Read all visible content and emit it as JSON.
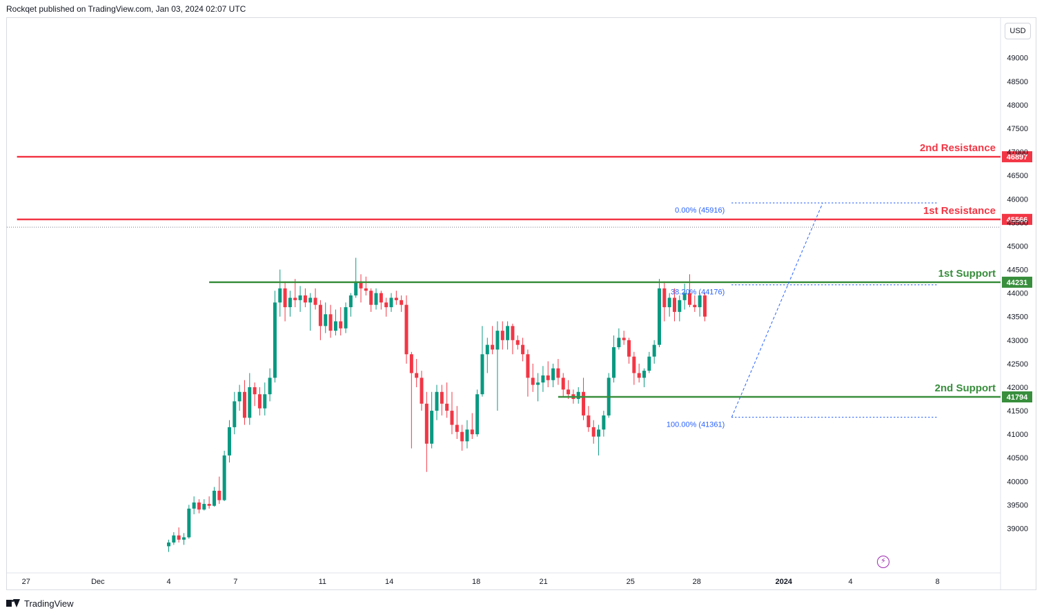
{
  "header": {
    "published": "Rockqet published on TradingView.com, Jan 03, 2024 02:07 UTC"
  },
  "footer": {
    "brand": "TradingView"
  },
  "currency_button": "USD",
  "colors": {
    "up": "#089981",
    "down": "#f23645",
    "resistance": "#f23645",
    "support": "#388e3c",
    "fib": "#2962ff",
    "fib_text": "#2962ff",
    "axis_text": "#131722"
  },
  "chart_data": {
    "type": "candlestick",
    "title": "",
    "xlabel": "",
    "ylabel": "",
    "ylim": [
      38450,
      49700
    ],
    "y_ticks": [
      39000,
      39500,
      40000,
      40500,
      41000,
      41500,
      42000,
      42500,
      43000,
      43500,
      44000,
      44500,
      45000,
      45500,
      46000,
      46500,
      47000,
      47500,
      48000,
      48500,
      49000
    ],
    "x_ticks": [
      {
        "label": "27",
        "bar": -28.2,
        "bold": false
      },
      {
        "label": "Dec",
        "bar": -14.0,
        "bold": false
      },
      {
        "label": "4",
        "bar": 0,
        "bold": false
      },
      {
        "label": "7",
        "bar": 13.2,
        "bold": false
      },
      {
        "label": "11",
        "bar": 30.4,
        "bold": false
      },
      {
        "label": "14",
        "bar": 43.6,
        "bold": false
      },
      {
        "label": "18",
        "bar": 60.8,
        "bold": false
      },
      {
        "label": "21",
        "bar": 74.1,
        "bold": false
      },
      {
        "label": "25",
        "bar": 91.3,
        "bold": false
      },
      {
        "label": "28",
        "bar": 104.4,
        "bold": false
      },
      {
        "label": "2024",
        "bar": 121.6,
        "bold": true
      },
      {
        "label": "4",
        "bar": 134.8,
        "bold": false
      },
      {
        "label": "8",
        "bar": 152.0,
        "bold": false
      }
    ],
    "levels": [
      {
        "name": "2nd Resistance",
        "value": 46897,
        "kind": "resistance",
        "from_bar": -30
      },
      {
        "name": "1st Resistance",
        "value": 45566,
        "kind": "resistance",
        "from_bar": -30
      },
      {
        "name": "1st Support",
        "value": 44231,
        "kind": "support",
        "from_bar": 8
      },
      {
        "name": "2nd Support",
        "value": 41794,
        "kind": "support",
        "from_bar": 77
      }
    ],
    "last_price": 45400,
    "fib": [
      {
        "label": "0.00% (45916)",
        "value": 45916
      },
      {
        "label": "38.20% (44176)",
        "value": 44176
      },
      {
        "label": "100.00% (41361)",
        "value": 41361
      }
    ],
    "fib_anchor": {
      "start_bar": 111.3,
      "start_value": 41361,
      "end_bar": 129.3,
      "end_value": 45916,
      "end_line_bar": 152.2
    },
    "candles": [
      {
        "o": 38620,
        "h": 38760,
        "l": 38500,
        "c": 38700
      },
      {
        "o": 38700,
        "h": 38920,
        "l": 38650,
        "c": 38850
      },
      {
        "o": 38850,
        "h": 39020,
        "l": 38700,
        "c": 38760
      },
      {
        "o": 38760,
        "h": 38900,
        "l": 38650,
        "c": 38810
      },
      {
        "o": 38810,
        "h": 39500,
        "l": 38780,
        "c": 39420
      },
      {
        "o": 39420,
        "h": 39680,
        "l": 39300,
        "c": 39550
      },
      {
        "o": 39550,
        "h": 39620,
        "l": 39320,
        "c": 39400
      },
      {
        "o": 39400,
        "h": 39620,
        "l": 39380,
        "c": 39520
      },
      {
        "o": 39520,
        "h": 39680,
        "l": 39420,
        "c": 39480
      },
      {
        "o": 39480,
        "h": 39880,
        "l": 39460,
        "c": 39800
      },
      {
        "o": 39800,
        "h": 40100,
        "l": 39520,
        "c": 39600
      },
      {
        "o": 39600,
        "h": 40650,
        "l": 39580,
        "c": 40550
      },
      {
        "o": 40550,
        "h": 41300,
        "l": 40400,
        "c": 41150
      },
      {
        "o": 41150,
        "h": 41900,
        "l": 41000,
        "c": 41700
      },
      {
        "o": 41700,
        "h": 42050,
        "l": 41500,
        "c": 41900
      },
      {
        "o": 41900,
        "h": 42150,
        "l": 41200,
        "c": 41350
      },
      {
        "o": 41350,
        "h": 42300,
        "l": 41200,
        "c": 42000
      },
      {
        "o": 42000,
        "h": 42100,
        "l": 41600,
        "c": 41850
      },
      {
        "o": 41850,
        "h": 42000,
        "l": 41400,
        "c": 41550
      },
      {
        "o": 41550,
        "h": 42100,
        "l": 41400,
        "c": 41850
      },
      {
        "o": 41850,
        "h": 42400,
        "l": 41700,
        "c": 42200
      },
      {
        "o": 42200,
        "h": 44050,
        "l": 42100,
        "c": 43800
      },
      {
        "o": 43800,
        "h": 44500,
        "l": 43500,
        "c": 44100
      },
      {
        "o": 44100,
        "h": 44250,
        "l": 43400,
        "c": 43700
      },
      {
        "o": 43700,
        "h": 44050,
        "l": 43500,
        "c": 43900
      },
      {
        "o": 43900,
        "h": 44300,
        "l": 43700,
        "c": 43850
      },
      {
        "o": 43850,
        "h": 44150,
        "l": 43600,
        "c": 43950
      },
      {
        "o": 43950,
        "h": 44100,
        "l": 43700,
        "c": 43800
      },
      {
        "o": 43800,
        "h": 44000,
        "l": 43200,
        "c": 43900
      },
      {
        "o": 43900,
        "h": 44100,
        "l": 43650,
        "c": 43750
      },
      {
        "o": 43750,
        "h": 43850,
        "l": 43000,
        "c": 43300
      },
      {
        "o": 43300,
        "h": 43800,
        "l": 43150,
        "c": 43550
      },
      {
        "o": 43550,
        "h": 43750,
        "l": 43050,
        "c": 43200
      },
      {
        "o": 43200,
        "h": 43650,
        "l": 43100,
        "c": 43400
      },
      {
        "o": 43400,
        "h": 43700,
        "l": 43100,
        "c": 43250
      },
      {
        "o": 43250,
        "h": 43800,
        "l": 43150,
        "c": 43700
      },
      {
        "o": 43700,
        "h": 44000,
        "l": 43500,
        "c": 43950
      },
      {
        "o": 43950,
        "h": 44750,
        "l": 43900,
        "c": 44250
      },
      {
        "o": 44250,
        "h": 44400,
        "l": 43800,
        "c": 44100
      },
      {
        "o": 44100,
        "h": 44350,
        "l": 43950,
        "c": 44050
      },
      {
        "o": 44050,
        "h": 44100,
        "l": 43600,
        "c": 43750
      },
      {
        "o": 43750,
        "h": 44100,
        "l": 43650,
        "c": 44000
      },
      {
        "o": 44000,
        "h": 44050,
        "l": 43650,
        "c": 43800
      },
      {
        "o": 43800,
        "h": 43900,
        "l": 43500,
        "c": 43700
      },
      {
        "o": 43700,
        "h": 44000,
        "l": 43600,
        "c": 43900
      },
      {
        "o": 43900,
        "h": 44050,
        "l": 43750,
        "c": 43850
      },
      {
        "o": 43850,
        "h": 43950,
        "l": 43600,
        "c": 43750
      },
      {
        "o": 43750,
        "h": 43950,
        "l": 42500,
        "c": 42700
      },
      {
        "o": 42700,
        "h": 42750,
        "l": 40700,
        "c": 42300
      },
      {
        "o": 42300,
        "h": 42600,
        "l": 42000,
        "c": 42200
      },
      {
        "o": 42200,
        "h": 42350,
        "l": 41500,
        "c": 41650
      },
      {
        "o": 41650,
        "h": 41900,
        "l": 40200,
        "c": 40800
      },
      {
        "o": 40800,
        "h": 41900,
        "l": 40700,
        "c": 41500
      },
      {
        "o": 41500,
        "h": 42050,
        "l": 41300,
        "c": 41900
      },
      {
        "o": 41900,
        "h": 42050,
        "l": 41400,
        "c": 41650
      },
      {
        "o": 41650,
        "h": 42100,
        "l": 41350,
        "c": 41500
      },
      {
        "o": 41500,
        "h": 41900,
        "l": 41000,
        "c": 41200
      },
      {
        "o": 41200,
        "h": 41600,
        "l": 40900,
        "c": 41050
      },
      {
        "o": 41050,
        "h": 41200,
        "l": 40650,
        "c": 40850
      },
      {
        "o": 40850,
        "h": 41300,
        "l": 40700,
        "c": 41100
      },
      {
        "o": 41100,
        "h": 41450,
        "l": 40900,
        "c": 41000
      },
      {
        "o": 41000,
        "h": 41950,
        "l": 40950,
        "c": 41850
      },
      {
        "o": 41850,
        "h": 43300,
        "l": 41800,
        "c": 42700
      },
      {
        "o": 42700,
        "h": 43050,
        "l": 42300,
        "c": 42900
      },
      {
        "o": 42900,
        "h": 43300,
        "l": 42700,
        "c": 42800
      },
      {
        "o": 42800,
        "h": 43400,
        "l": 41500,
        "c": 43200
      },
      {
        "o": 43200,
        "h": 43400,
        "l": 42800,
        "c": 43000
      },
      {
        "o": 43000,
        "h": 43400,
        "l": 42800,
        "c": 43300
      },
      {
        "o": 43300,
        "h": 43350,
        "l": 42700,
        "c": 43000
      },
      {
        "o": 43000,
        "h": 43100,
        "l": 42800,
        "c": 42900
      },
      {
        "o": 42900,
        "h": 43050,
        "l": 42550,
        "c": 42700
      },
      {
        "o": 42700,
        "h": 42800,
        "l": 41800,
        "c": 42200
      },
      {
        "o": 42200,
        "h": 42500,
        "l": 41900,
        "c": 42050
      },
      {
        "o": 42050,
        "h": 42300,
        "l": 41700,
        "c": 42100
      },
      {
        "o": 42100,
        "h": 42450,
        "l": 41900,
        "c": 42250
      },
      {
        "o": 42250,
        "h": 42550,
        "l": 42000,
        "c": 42150
      },
      {
        "o": 42150,
        "h": 42500,
        "l": 42000,
        "c": 42400
      },
      {
        "o": 42400,
        "h": 42600,
        "l": 42050,
        "c": 42200
      },
      {
        "o": 42200,
        "h": 42300,
        "l": 41800,
        "c": 41950
      },
      {
        "o": 41950,
        "h": 42150,
        "l": 41750,
        "c": 41850
      },
      {
        "o": 41850,
        "h": 41950,
        "l": 41650,
        "c": 41750
      },
      {
        "o": 41750,
        "h": 42000,
        "l": 41650,
        "c": 41900
      },
      {
        "o": 41900,
        "h": 42200,
        "l": 41300,
        "c": 41400
      },
      {
        "o": 41400,
        "h": 41600,
        "l": 41050,
        "c": 41150
      },
      {
        "o": 41150,
        "h": 41300,
        "l": 40800,
        "c": 40950
      },
      {
        "o": 40950,
        "h": 41200,
        "l": 40550,
        "c": 41100
      },
      {
        "o": 41100,
        "h": 41500,
        "l": 40950,
        "c": 41400
      },
      {
        "o": 41400,
        "h": 42300,
        "l": 41350,
        "c": 42200
      },
      {
        "o": 42200,
        "h": 43100,
        "l": 42100,
        "c": 42850
      },
      {
        "o": 42850,
        "h": 43250,
        "l": 42800,
        "c": 43050
      },
      {
        "o": 43050,
        "h": 43200,
        "l": 42900,
        "c": 43000
      },
      {
        "o": 43000,
        "h": 43050,
        "l": 42500,
        "c": 42650
      },
      {
        "o": 42650,
        "h": 42750,
        "l": 42050,
        "c": 42300
      },
      {
        "o": 42300,
        "h": 42500,
        "l": 42100,
        "c": 42200
      },
      {
        "o": 42200,
        "h": 42400,
        "l": 42000,
        "c": 42350
      },
      {
        "o": 42350,
        "h": 42750,
        "l": 42300,
        "c": 42650
      },
      {
        "o": 42650,
        "h": 43000,
        "l": 42500,
        "c": 42900
      },
      {
        "o": 42900,
        "h": 44300,
        "l": 42850,
        "c": 44100
      },
      {
        "o": 44100,
        "h": 44250,
        "l": 43400,
        "c": 43700
      },
      {
        "o": 43700,
        "h": 44000,
        "l": 43500,
        "c": 43900
      },
      {
        "o": 43900,
        "h": 44100,
        "l": 43400,
        "c": 43600
      },
      {
        "o": 43600,
        "h": 43950,
        "l": 43400,
        "c": 43850
      },
      {
        "o": 43850,
        "h": 44200,
        "l": 43650,
        "c": 44000
      },
      {
        "o": 44000,
        "h": 44400,
        "l": 43700,
        "c": 43750
      },
      {
        "o": 43750,
        "h": 43950,
        "l": 43600,
        "c": 43700
      },
      {
        "o": 43700,
        "h": 44000,
        "l": 43500,
        "c": 43950
      },
      {
        "o": 43950,
        "h": 44000,
        "l": 43400,
        "c": 43500
      }
    ]
  }
}
